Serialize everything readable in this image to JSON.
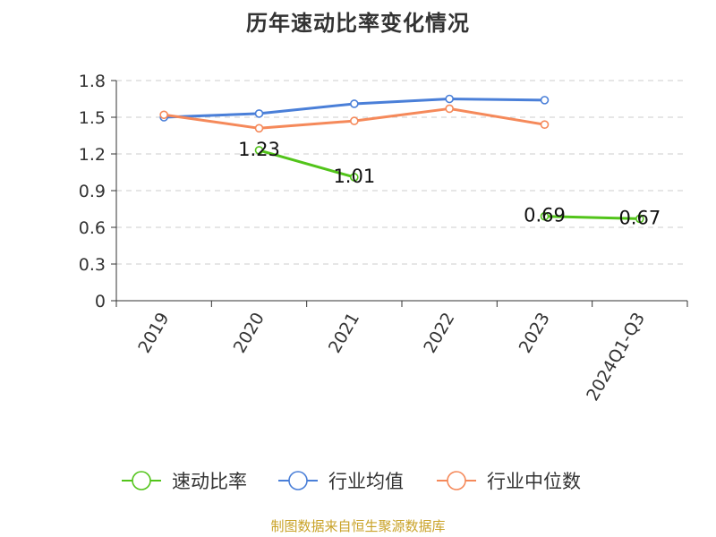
{
  "chart_data": {
    "type": "line",
    "title": "历年速动比率变化情况",
    "categories": [
      "2019",
      "2020",
      "2021",
      "2022",
      "2023",
      "2024Q1-Q3"
    ],
    "ylim": [
      0,
      1.8
    ],
    "yticks": [
      "0",
      "0.3",
      "0.6",
      "0.9",
      "1.2",
      "1.5",
      "1.8"
    ],
    "grid": true,
    "legend_position": "bottom",
    "series": [
      {
        "name": "速动比率",
        "color": "#52c41a",
        "values": [
          null,
          1.23,
          1.01,
          null,
          0.69,
          0.67
        ],
        "labels": [
          "",
          "1.23",
          "1.01",
          "",
          "0.69",
          "0.67"
        ]
      },
      {
        "name": "行业均值",
        "color": "#4a7fd8",
        "values": [
          1.5,
          1.53,
          1.61,
          1.65,
          1.64,
          null
        ],
        "labels": [
          "",
          "",
          "",
          "",
          "",
          ""
        ]
      },
      {
        "name": "行业中位数",
        "color": "#f5895a",
        "values": [
          1.52,
          1.41,
          1.47,
          1.57,
          1.44,
          null
        ],
        "labels": [
          "",
          "",
          "",
          "",
          "",
          ""
        ]
      }
    ]
  },
  "footer": {
    "source": "制图数据来自恒生聚源数据库"
  }
}
